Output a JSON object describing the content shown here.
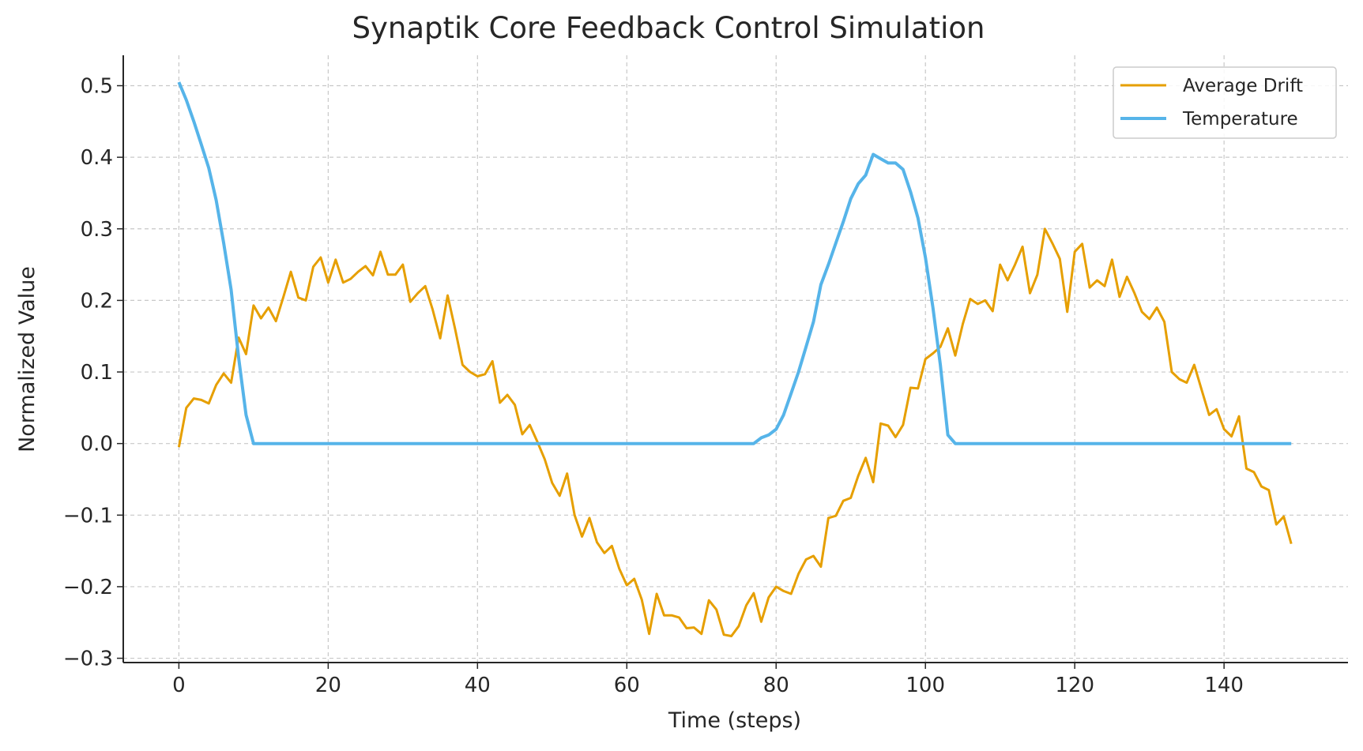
{
  "chart_data": {
    "type": "line",
    "title": "Synaptik Core Feedback Control Simulation",
    "xlabel": "Time (steps)",
    "ylabel": "Normalized Value",
    "xlim": [
      -7.45,
      156.6
    ],
    "ylim": [
      -0.306,
      0.5425
    ],
    "xticks": [
      0,
      20,
      40,
      60,
      80,
      100,
      120,
      140
    ],
    "xtick_labels": [
      "0",
      "20",
      "40",
      "60",
      "80",
      "100",
      "120",
      "140"
    ],
    "yticks": [
      -0.3,
      -0.2,
      -0.1,
      0.0,
      0.1,
      0.2,
      0.3,
      0.4,
      0.5
    ],
    "ytick_labels": [
      "−0.3",
      "−0.2",
      "−0.1",
      "0.0",
      "0.1",
      "0.2",
      "0.3",
      "0.4",
      "0.5"
    ],
    "grid": true,
    "legend_position": "top-right",
    "series": [
      {
        "name": "Average Drift",
        "color": "#E69F00",
        "values": [
          -0.005,
          0.05,
          0.063,
          0.061,
          0.056,
          0.082,
          0.098,
          0.085,
          0.148,
          0.125,
          0.193,
          0.175,
          0.19,
          0.171,
          0.205,
          0.24,
          0.204,
          0.2,
          0.247,
          0.26,
          0.225,
          0.257,
          0.225,
          0.23,
          0.24,
          0.248,
          0.235,
          0.268,
          0.236,
          0.236,
          0.25,
          0.198,
          0.21,
          0.22,
          0.187,
          0.147,
          0.207,
          0.16,
          0.11,
          0.1,
          0.094,
          0.097,
          0.115,
          0.057,
          0.068,
          0.054,
          0.013,
          0.026,
          0.003,
          -0.022,
          -0.055,
          -0.073,
          -0.042,
          -0.1,
          -0.13,
          -0.104,
          -0.138,
          -0.153,
          -0.143,
          -0.175,
          -0.198,
          -0.189,
          -0.218,
          -0.266,
          -0.21,
          -0.24,
          -0.24,
          -0.243,
          -0.258,
          -0.257,
          -0.266,
          -0.219,
          -0.232,
          -0.267,
          -0.269,
          -0.255,
          -0.226,
          -0.209,
          -0.249,
          -0.215,
          -0.2,
          -0.206,
          -0.21,
          -0.182,
          -0.162,
          -0.157,
          -0.172,
          -0.104,
          -0.101,
          -0.08,
          -0.076,
          -0.045,
          -0.02,
          -0.054,
          0.028,
          0.025,
          0.009,
          0.026,
          0.078,
          0.077,
          0.118,
          0.126,
          0.135,
          0.161,
          0.123,
          0.167,
          0.202,
          0.195,
          0.2,
          0.185,
          0.25,
          0.228,
          0.25,
          0.275,
          0.21,
          0.236,
          0.3,
          0.28,
          0.258,
          0.184,
          0.268,
          0.279,
          0.218,
          0.228,
          0.22,
          0.257,
          0.205,
          0.233,
          0.21,
          0.184,
          0.174,
          0.19,
          0.17,
          0.1,
          0.09,
          0.085,
          0.11,
          0.075,
          0.04,
          0.048,
          0.02,
          0.01,
          0.038,
          -0.035,
          -0.04,
          -0.06,
          -0.065,
          -0.113,
          -0.102,
          -0.14
        ]
      },
      {
        "name": "Temperature",
        "color": "#56B4E9",
        "values": [
          0.505,
          0.48,
          0.45,
          0.418,
          0.385,
          0.34,
          0.28,
          0.215,
          0.12,
          0.04,
          0,
          0,
          0,
          0,
          0,
          0,
          0,
          0,
          0,
          0,
          0,
          0,
          0,
          0,
          0,
          0,
          0,
          0,
          0,
          0,
          0,
          0,
          0,
          0,
          0,
          0,
          0,
          0,
          0,
          0,
          0,
          0,
          0,
          0,
          0,
          0,
          0,
          0,
          0,
          0,
          0,
          0,
          0,
          0,
          0,
          0,
          0,
          0,
          0,
          0,
          0,
          0,
          0,
          0,
          0,
          0,
          0,
          0,
          0,
          0,
          0,
          0,
          0,
          0,
          0,
          0,
          0,
          0,
          0.008,
          0.012,
          0.02,
          0.04,
          0.07,
          0.1,
          0.135,
          0.17,
          0.222,
          0.25,
          0.28,
          0.31,
          0.342,
          0.363,
          0.375,
          0.404,
          0.398,
          0.392,
          0.392,
          0.383,
          0.352,
          0.315,
          0.26,
          0.19,
          0.11,
          0.012,
          0,
          0,
          0,
          0,
          0,
          0,
          0,
          0,
          0,
          0,
          0,
          0,
          0,
          0,
          0,
          0,
          0,
          0,
          0,
          0,
          0,
          0,
          0,
          0,
          0,
          0,
          0,
          0,
          0,
          0,
          0,
          0,
          0,
          0,
          0,
          0,
          0,
          0,
          0,
          0,
          0,
          0,
          0,
          0,
          0,
          0
        ]
      }
    ]
  }
}
